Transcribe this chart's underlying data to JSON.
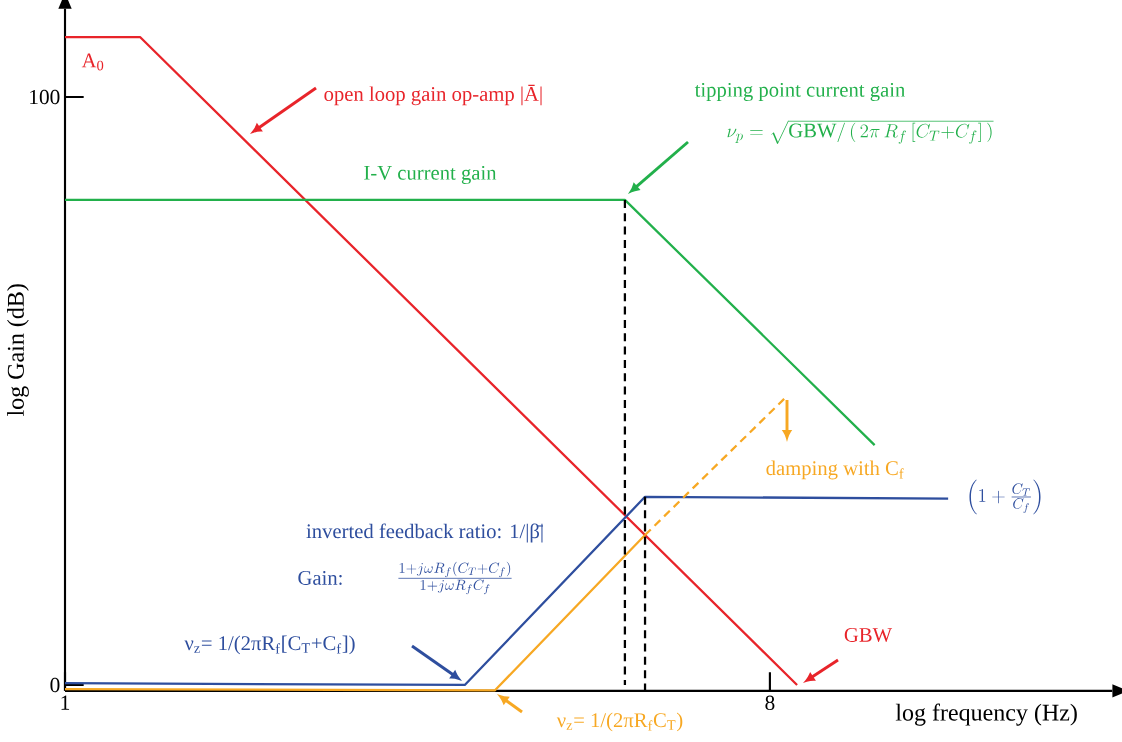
{
  "chart_data": {
    "type": "line",
    "xlabel": "log frequency (Hz)",
    "ylabel": "log Gain (dB)",
    "xlim": [
      1,
      11.4
    ],
    "ylim": [
      -1,
      115
    ],
    "xticks": [
      1,
      8
    ],
    "yticks": [
      0,
      100
    ],
    "series": [
      {
        "color": "#e8242a",
        "x": [
          1,
          1.745,
          8.27
        ],
        "values": [
          110.2,
          110.2,
          0
        ]
      },
      {
        "color": "#22b04b",
        "x": [
          1,
          6.56,
          9.04
        ],
        "values": [
          82.5,
          82.5,
          40.8
        ]
      },
      {
        "color": "#2e4e9e",
        "x": [
          1,
          4.97,
          6.76,
          9.77
        ],
        "values": [
          0.3,
          0,
          32,
          31.7
        ]
      },
      {
        "color": "#f7a823",
        "x": [
          1,
          5.27,
          6.76
        ],
        "values": [
          -0.7,
          -0.9,
          25.5
        ]
      },
      {
        "color": "#f7a823",
        "x": [
          6.76,
          8.15
        ],
        "values": [
          25.5,
          48.8
        ],
        "line_style": "dashed"
      },
      {
        "color": "#000000",
        "x": [
          6.56,
          6.56
        ],
        "values": [
          82.5,
          0
        ],
        "line_style": "dashed"
      },
      {
        "color": "#000000",
        "x": [
          6.76,
          6.76
        ],
        "values": [
          32,
          -0.9
        ],
        "line_style": "dashed"
      }
    ],
    "annotations": [
      "A$_{0}$",
      "open loop gain op-amp |Ā|",
      "tipping point current gain",
      "\\nu_p = \\sqrt{\\mathrm{GBW}/\\,(\\,2\\pi\\, R_f\\,[C_T{+}C_f]\\,)}",
      "I-V current gain",
      "damping with C$_{f}$",
      "\\left(1+\\frac{C_T}{C_f}\\right)",
      "inverted feedback ratio: 1/|β̄|",
      "Gain:",
      "\\frac{1+j\\omega R_f(C_T+C_f)}{1+j\\omega R_f C_f}",
      "ν$_{z}$= 1/(2πR$_{f}$[C$_{T}$+C$_{f}$])",
      "ν$_{z}$= 1/(2πR$_{f}$C$_{T}$)",
      "GBW"
    ]
  }
}
